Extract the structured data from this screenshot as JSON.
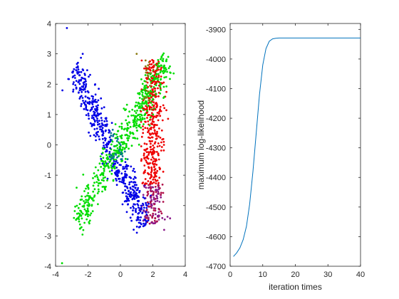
{
  "chart_data": [
    {
      "type": "scatter",
      "xlim": [
        -4,
        4
      ],
      "ylim": [
        -4,
        4
      ],
      "xticks": [
        "-4",
        "-2",
        "0",
        "2",
        "4"
      ],
      "yticks": [
        "-4",
        "-3",
        "-2",
        "-1",
        "0",
        "1",
        "2",
        "3",
        "4"
      ],
      "grid": false,
      "legend": "none",
      "clusters": [
        {
          "color": "#0000e6",
          "description_free": true,
          "from": [
            -2.9,
            2.5
          ],
          "to": [
            1.6,
            -2.6
          ],
          "spread": 0.28,
          "count": 520,
          "outliers": [
            [
              -3.3,
              3.85
            ]
          ]
        },
        {
          "color": "#00dd00",
          "from": [
            -2.7,
            -2.6
          ],
          "to": [
            2.9,
            2.8
          ],
          "spread": 0.28,
          "count": 520,
          "outliers": [
            [
              -3.6,
              -3.9
            ],
            [
              2.95,
              2.9
            ]
          ]
        },
        {
          "color": "#ee0000",
          "from": [
            2.0,
            -2.6
          ],
          "to": [
            2.0,
            2.8
          ],
          "spread": 0.32,
          "count": 520,
          "outliers": [
            [
              1.0,
              3.0
            ],
            [
              2.7,
              -2.8
            ]
          ]
        }
      ]
    },
    {
      "type": "line",
      "xlabel": "iteration times",
      "ylabel": "maximum log-likelihood",
      "xlim": [
        0,
        40
      ],
      "ylim": [
        -4700,
        -3880
      ],
      "xticks": [
        "0",
        "10",
        "20",
        "30",
        "40"
      ],
      "yticks": [
        "-4700",
        "-4600",
        "-4500",
        "-4400",
        "-4300",
        "-4200",
        "-4100",
        "-4000",
        "-3900"
      ],
      "color": "#0072bd",
      "series": [
        {
          "x": [
            1,
            2,
            3,
            4,
            5,
            6,
            7,
            8,
            9,
            10,
            11,
            12,
            13,
            14,
            15,
            16,
            17,
            18,
            19,
            20,
            25,
            30,
            35,
            40
          ],
          "values": [
            -4667,
            -4655,
            -4638,
            -4610,
            -4565,
            -4490,
            -4380,
            -4250,
            -4120,
            -4020,
            -3965,
            -3940,
            -3932,
            -3930,
            -3929,
            -3929,
            -3929,
            -3929,
            -3929,
            -3929,
            -3929,
            -3929,
            -3929,
            -3929
          ]
        }
      ]
    }
  ]
}
